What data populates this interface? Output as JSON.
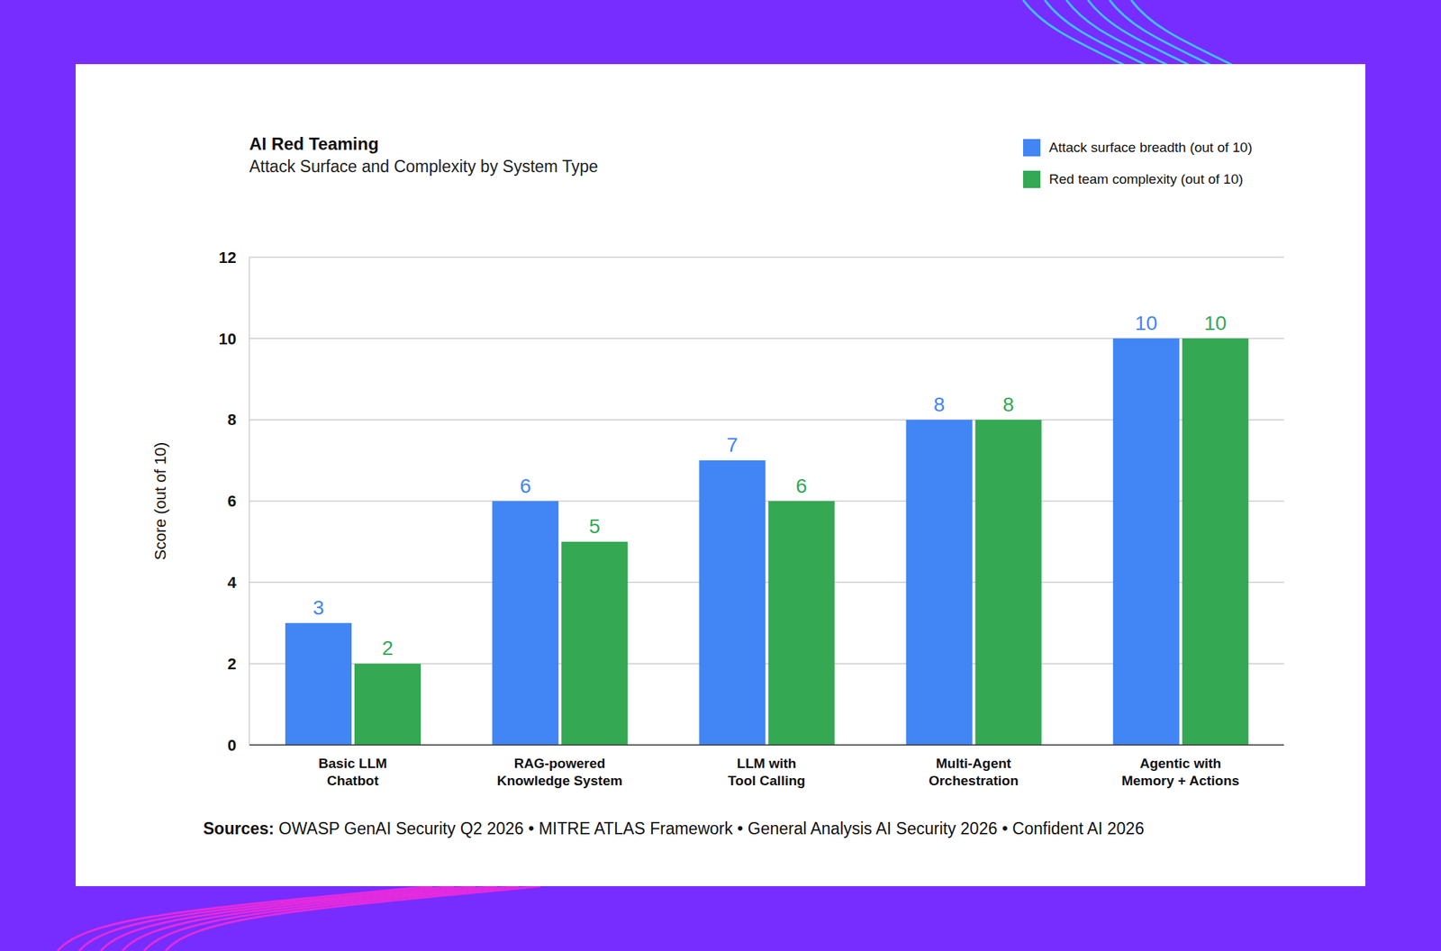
{
  "chart_data": {
    "type": "bar",
    "title": "AI Red Teaming",
    "subtitle": "Attack Surface and Complexity by System Type",
    "categories": [
      "Basic LLM\nChatbot",
      "RAG-powered\nKnowledge System",
      "LLM with\nTool Calling",
      "Multi-Agent\nOrchestration",
      "Agentic with\nMemory + Actions"
    ],
    "series": [
      {
        "name": "Attack surface breadth (out of 10)",
        "color": "#4285f4",
        "values": [
          3,
          6,
          7,
          8,
          10
        ]
      },
      {
        "name": "Red team complexity (out of 10)",
        "color": "#34a853",
        "values": [
          2,
          5,
          6,
          8,
          10
        ]
      }
    ],
    "y_label": "Score (out of 10)",
    "ylim": [
      0,
      12
    ],
    "yticks": [
      0,
      2,
      4,
      6,
      8,
      10,
      12
    ],
    "grid": true,
    "data_labels": true,
    "legend": "top-right",
    "sources_label": "Sources:",
    "sources": "OWASP GenAI Security Q2 2026 • MITRE ATLAS Framework • General Analysis AI Security 2026 • Confident AI 2026"
  }
}
